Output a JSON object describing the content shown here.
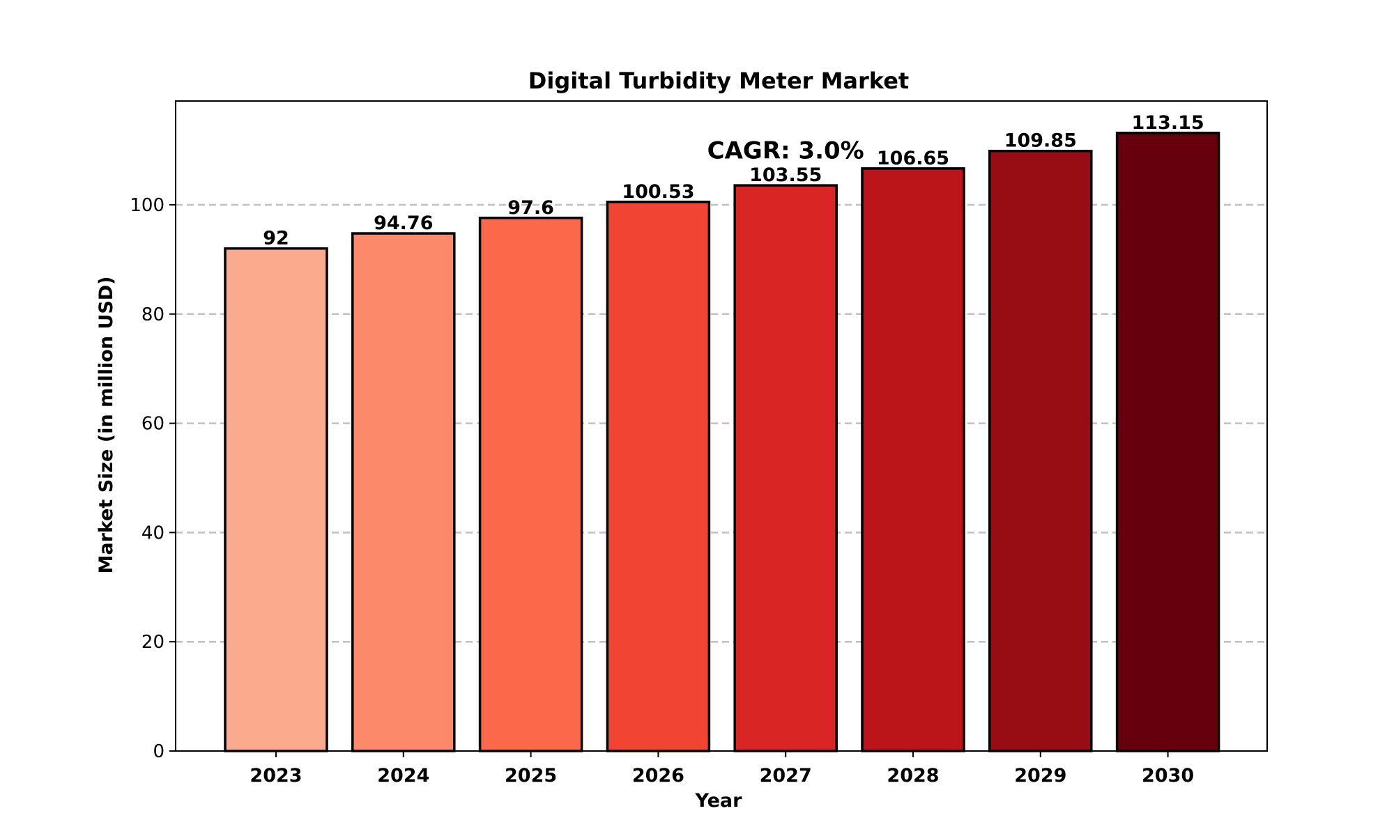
{
  "chart_data": {
    "type": "bar",
    "title": "Digital Turbidity Meter Market",
    "xlabel": "Year",
    "ylabel": "Market Size (in million USD)",
    "categories": [
      "2023",
      "2024",
      "2025",
      "2026",
      "2027",
      "2028",
      "2029",
      "2030"
    ],
    "values": [
      92,
      94.76,
      97.6,
      100.53,
      103.55,
      106.65,
      109.85,
      113.15
    ],
    "value_labels": [
      "92",
      "94.76",
      "97.6",
      "100.53",
      "103.55",
      "106.65",
      "109.85",
      "113.15"
    ],
    "colors": [
      "#fcaa8e",
      "#fc8a6a",
      "#fb694a",
      "#f14432",
      "#d92523",
      "#bb151a",
      "#980c13",
      "#67000d"
    ],
    "ylim": [
      0,
      119
    ],
    "yticks": [
      0,
      20,
      40,
      60,
      80,
      100
    ],
    "grid": {
      "axis": "y",
      "style": "dashed",
      "color": "#c0c0c0"
    },
    "annotation": {
      "text": "CAGR: 3.0%",
      "anchor_category": "2027",
      "y_value": 110
    }
  }
}
